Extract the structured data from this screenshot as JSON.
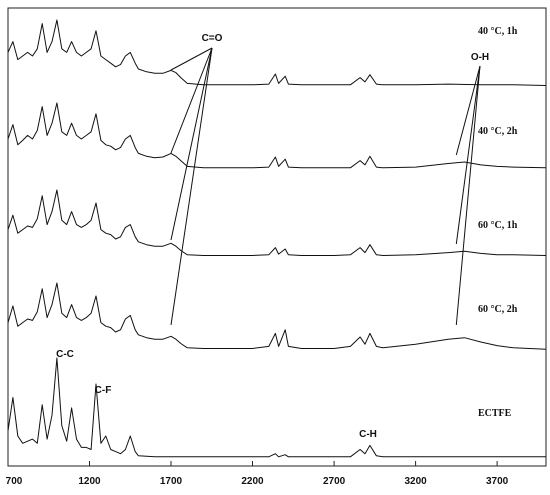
{
  "chart_data": {
    "type": "line",
    "xlim": [
      700,
      4000
    ],
    "x_ticks": [
      700,
      1200,
      1700,
      2200,
      2700,
      3200,
      3700
    ],
    "x_tick_labels": [
      "700",
      "1200",
      "1700",
      "2200",
      "2700",
      "3200",
      "3700"
    ],
    "series": [
      {
        "name": "40 °C, 1h",
        "points": [
          [
            700,
            0.55
          ],
          [
            730,
            0.7
          ],
          [
            760,
            0.45
          ],
          [
            790,
            0.5
          ],
          [
            820,
            0.55
          ],
          [
            850,
            0.5
          ],
          [
            880,
            0.6
          ],
          [
            910,
            0.95
          ],
          [
            940,
            0.55
          ],
          [
            970,
            0.7
          ],
          [
            1000,
            1.0
          ],
          [
            1030,
            0.6
          ],
          [
            1060,
            0.55
          ],
          [
            1090,
            0.7
          ],
          [
            1120,
            0.55
          ],
          [
            1150,
            0.5
          ],
          [
            1180,
            0.55
          ],
          [
            1210,
            0.6
          ],
          [
            1240,
            0.85
          ],
          [
            1270,
            0.5
          ],
          [
            1300,
            0.45
          ],
          [
            1330,
            0.4
          ],
          [
            1360,
            0.35
          ],
          [
            1390,
            0.38
          ],
          [
            1420,
            0.5
          ],
          [
            1450,
            0.55
          ],
          [
            1480,
            0.4
          ],
          [
            1500,
            0.32
          ],
          [
            1550,
            0.28
          ],
          [
            1600,
            0.26
          ],
          [
            1650,
            0.26
          ],
          [
            1700,
            0.3
          ],
          [
            1730,
            0.27
          ],
          [
            1760,
            0.2
          ],
          [
            1800,
            0.12
          ],
          [
            1900,
            0.1
          ],
          [
            2000,
            0.1
          ],
          [
            2100,
            0.1
          ],
          [
            2200,
            0.1
          ],
          [
            2300,
            0.11
          ],
          [
            2340,
            0.25
          ],
          [
            2360,
            0.12
          ],
          [
            2400,
            0.22
          ],
          [
            2420,
            0.11
          ],
          [
            2500,
            0.1
          ],
          [
            2600,
            0.1
          ],
          [
            2700,
            0.1
          ],
          [
            2800,
            0.1
          ],
          [
            2860,
            0.2
          ],
          [
            2890,
            0.14
          ],
          [
            2920,
            0.24
          ],
          [
            2960,
            0.11
          ],
          [
            3000,
            0.1
          ],
          [
            3200,
            0.1
          ],
          [
            3400,
            0.11
          ],
          [
            3600,
            0.1
          ],
          [
            3800,
            0.1
          ],
          [
            4000,
            0.09
          ]
        ]
      },
      {
        "name": "40 °C, 2h",
        "points": [
          [
            700,
            0.5
          ],
          [
            730,
            0.7
          ],
          [
            760,
            0.42
          ],
          [
            790,
            0.48
          ],
          [
            820,
            0.55
          ],
          [
            850,
            0.5
          ],
          [
            880,
            0.62
          ],
          [
            910,
            0.95
          ],
          [
            940,
            0.55
          ],
          [
            970,
            0.72
          ],
          [
            1000,
            1.0
          ],
          [
            1030,
            0.6
          ],
          [
            1060,
            0.55
          ],
          [
            1090,
            0.72
          ],
          [
            1120,
            0.55
          ],
          [
            1150,
            0.5
          ],
          [
            1180,
            0.55
          ],
          [
            1210,
            0.6
          ],
          [
            1240,
            0.85
          ],
          [
            1270,
            0.48
          ],
          [
            1300,
            0.42
          ],
          [
            1330,
            0.4
          ],
          [
            1360,
            0.35
          ],
          [
            1390,
            0.38
          ],
          [
            1420,
            0.5
          ],
          [
            1450,
            0.55
          ],
          [
            1480,
            0.38
          ],
          [
            1500,
            0.3
          ],
          [
            1550,
            0.26
          ],
          [
            1600,
            0.24
          ],
          [
            1650,
            0.25
          ],
          [
            1700,
            0.3
          ],
          [
            1730,
            0.26
          ],
          [
            1760,
            0.2
          ],
          [
            1800,
            0.12
          ],
          [
            1900,
            0.1
          ],
          [
            2000,
            0.1
          ],
          [
            2100,
            0.1
          ],
          [
            2200,
            0.1
          ],
          [
            2300,
            0.11
          ],
          [
            2340,
            0.25
          ],
          [
            2360,
            0.12
          ],
          [
            2400,
            0.22
          ],
          [
            2420,
            0.11
          ],
          [
            2500,
            0.1
          ],
          [
            2600,
            0.1
          ],
          [
            2700,
            0.1
          ],
          [
            2800,
            0.1
          ],
          [
            2860,
            0.2
          ],
          [
            2890,
            0.14
          ],
          [
            2920,
            0.26
          ],
          [
            2960,
            0.11
          ],
          [
            3000,
            0.1
          ],
          [
            3200,
            0.11
          ],
          [
            3400,
            0.16
          ],
          [
            3500,
            0.18
          ],
          [
            3600,
            0.14
          ],
          [
            3700,
            0.12
          ],
          [
            3800,
            0.11
          ],
          [
            4000,
            0.1
          ]
        ]
      },
      {
        "name": "60 °C, 1h",
        "points": [
          [
            700,
            0.45
          ],
          [
            730,
            0.65
          ],
          [
            760,
            0.4
          ],
          [
            790,
            0.45
          ],
          [
            820,
            0.5
          ],
          [
            850,
            0.48
          ],
          [
            880,
            0.6
          ],
          [
            910,
            0.92
          ],
          [
            940,
            0.52
          ],
          [
            970,
            0.7
          ],
          [
            1000,
            1.0
          ],
          [
            1030,
            0.58
          ],
          [
            1060,
            0.52
          ],
          [
            1090,
            0.7
          ],
          [
            1120,
            0.52
          ],
          [
            1150,
            0.48
          ],
          [
            1180,
            0.52
          ],
          [
            1210,
            0.58
          ],
          [
            1240,
            0.82
          ],
          [
            1270,
            0.45
          ],
          [
            1300,
            0.4
          ],
          [
            1330,
            0.38
          ],
          [
            1360,
            0.32
          ],
          [
            1390,
            0.35
          ],
          [
            1420,
            0.48
          ],
          [
            1450,
            0.52
          ],
          [
            1480,
            0.35
          ],
          [
            1500,
            0.28
          ],
          [
            1550,
            0.24
          ],
          [
            1600,
            0.22
          ],
          [
            1650,
            0.22
          ],
          [
            1700,
            0.26
          ],
          [
            1730,
            0.22
          ],
          [
            1760,
            0.16
          ],
          [
            1800,
            0.1
          ],
          [
            1900,
            0.09
          ],
          [
            2000,
            0.09
          ],
          [
            2100,
            0.09
          ],
          [
            2200,
            0.09
          ],
          [
            2300,
            0.1
          ],
          [
            2340,
            0.2
          ],
          [
            2360,
            0.11
          ],
          [
            2400,
            0.18
          ],
          [
            2420,
            0.1
          ],
          [
            2500,
            0.09
          ],
          [
            2600,
            0.09
          ],
          [
            2700,
            0.09
          ],
          [
            2800,
            0.1
          ],
          [
            2860,
            0.2
          ],
          [
            2890,
            0.13
          ],
          [
            2920,
            0.24
          ],
          [
            2960,
            0.1
          ],
          [
            3000,
            0.09
          ],
          [
            3200,
            0.1
          ],
          [
            3400,
            0.13
          ],
          [
            3500,
            0.15
          ],
          [
            3600,
            0.12
          ],
          [
            3700,
            0.1
          ],
          [
            3800,
            0.1
          ],
          [
            4000,
            0.09
          ]
        ]
      },
      {
        "name": "60 °C, 2h",
        "points": [
          [
            700,
            0.45
          ],
          [
            730,
            0.68
          ],
          [
            760,
            0.4
          ],
          [
            790,
            0.45
          ],
          [
            820,
            0.5
          ],
          [
            850,
            0.48
          ],
          [
            880,
            0.6
          ],
          [
            910,
            0.92
          ],
          [
            940,
            0.52
          ],
          [
            970,
            0.7
          ],
          [
            1000,
            1.0
          ],
          [
            1030,
            0.58
          ],
          [
            1060,
            0.52
          ],
          [
            1090,
            0.7
          ],
          [
            1120,
            0.52
          ],
          [
            1150,
            0.48
          ],
          [
            1180,
            0.52
          ],
          [
            1210,
            0.58
          ],
          [
            1240,
            0.82
          ],
          [
            1270,
            0.45
          ],
          [
            1300,
            0.4
          ],
          [
            1330,
            0.38
          ],
          [
            1360,
            0.32
          ],
          [
            1390,
            0.35
          ],
          [
            1420,
            0.5
          ],
          [
            1450,
            0.55
          ],
          [
            1480,
            0.35
          ],
          [
            1500,
            0.28
          ],
          [
            1550,
            0.24
          ],
          [
            1600,
            0.22
          ],
          [
            1650,
            0.22
          ],
          [
            1700,
            0.26
          ],
          [
            1730,
            0.22
          ],
          [
            1760,
            0.16
          ],
          [
            1800,
            0.1
          ],
          [
            1900,
            0.09
          ],
          [
            2000,
            0.09
          ],
          [
            2100,
            0.09
          ],
          [
            2200,
            0.09
          ],
          [
            2300,
            0.12
          ],
          [
            2340,
            0.3
          ],
          [
            2360,
            0.12
          ],
          [
            2400,
            0.35
          ],
          [
            2420,
            0.12
          ],
          [
            2500,
            0.09
          ],
          [
            2600,
            0.09
          ],
          [
            2700,
            0.09
          ],
          [
            2800,
            0.12
          ],
          [
            2860,
            0.25
          ],
          [
            2890,
            0.15
          ],
          [
            2920,
            0.3
          ],
          [
            2960,
            0.12
          ],
          [
            3000,
            0.1
          ],
          [
            3200,
            0.15
          ],
          [
            3400,
            0.22
          ],
          [
            3500,
            0.24
          ],
          [
            3600,
            0.18
          ],
          [
            3700,
            0.13
          ],
          [
            3800,
            0.1
          ],
          [
            4000,
            0.08
          ]
        ]
      },
      {
        "name": "ECTFE",
        "points": [
          [
            700,
            0.3
          ],
          [
            730,
            0.62
          ],
          [
            760,
            0.25
          ],
          [
            790,
            0.18
          ],
          [
            820,
            0.2
          ],
          [
            850,
            0.22
          ],
          [
            880,
            0.18
          ],
          [
            910,
            0.55
          ],
          [
            940,
            0.22
          ],
          [
            970,
            0.45
          ],
          [
            1000,
            1.0
          ],
          [
            1030,
            0.35
          ],
          [
            1060,
            0.2
          ],
          [
            1090,
            0.52
          ],
          [
            1120,
            0.22
          ],
          [
            1150,
            0.14
          ],
          [
            1180,
            0.14
          ],
          [
            1210,
            0.12
          ],
          [
            1240,
            0.75
          ],
          [
            1270,
            0.18
          ],
          [
            1300,
            0.25
          ],
          [
            1330,
            0.12
          ],
          [
            1360,
            0.1
          ],
          [
            1390,
            0.08
          ],
          [
            1420,
            0.12
          ],
          [
            1450,
            0.25
          ],
          [
            1480,
            0.1
          ],
          [
            1500,
            0.06
          ],
          [
            1600,
            0.05
          ],
          [
            1700,
            0.05
          ],
          [
            1800,
            0.05
          ],
          [
            1900,
            0.05
          ],
          [
            2000,
            0.05
          ],
          [
            2100,
            0.05
          ],
          [
            2200,
            0.05
          ],
          [
            2300,
            0.05
          ],
          [
            2340,
            0.08
          ],
          [
            2360,
            0.05
          ],
          [
            2400,
            0.07
          ],
          [
            2420,
            0.05
          ],
          [
            2500,
            0.05
          ],
          [
            2600,
            0.05
          ],
          [
            2700,
            0.05
          ],
          [
            2800,
            0.05
          ],
          [
            2860,
            0.12
          ],
          [
            2890,
            0.08
          ],
          [
            2920,
            0.16
          ],
          [
            2960,
            0.06
          ],
          [
            3000,
            0.05
          ],
          [
            3200,
            0.05
          ],
          [
            3400,
            0.05
          ],
          [
            3600,
            0.05
          ],
          [
            3800,
            0.05
          ],
          [
            4000,
            0.05
          ]
        ]
      }
    ],
    "annotations": [
      {
        "id": "co",
        "text": "C=O",
        "target_x": 1700
      },
      {
        "id": "oh",
        "text": "O-H",
        "target_x": 3450
      },
      {
        "id": "cc",
        "text": "C-C"
      },
      {
        "id": "cf",
        "text": "C-F"
      },
      {
        "id": "ch",
        "text": "C-H"
      }
    ],
    "grid": false,
    "legend": "none"
  }
}
